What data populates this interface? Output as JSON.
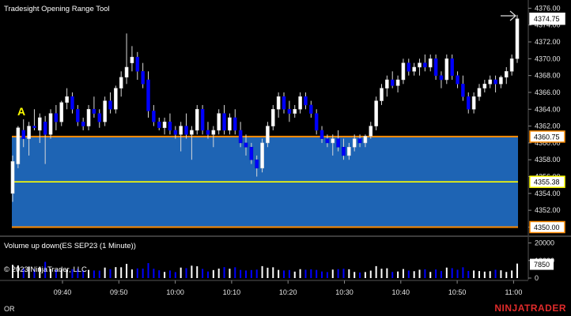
{
  "window": {
    "title": "Tradesight Opening Range Tool",
    "corner_label": "OR",
    "brand": "NINJATRADER",
    "brand_color": "#e02b2b"
  },
  "chart_data": [
    {
      "type": "candlestick",
      "title": "Tradesight Opening Range Tool",
      "time_ticks": [
        "09:40",
        "09:50",
        "10:00",
        "10:10",
        "10:20",
        "10:30",
        "10:40",
        "10:50",
        "11:00"
      ],
      "y_ticks": [
        4350.0,
        4352.0,
        4354.0,
        4356.0,
        4358.0,
        4360.0,
        4362.0,
        4364.0,
        4366.0,
        4368.0,
        4370.0,
        4372.0,
        4374.0,
        4376.0
      ],
      "ylim": [
        4349.2,
        4376.6
      ],
      "up_color": "#ffffff",
      "down_color": "#0000ff",
      "opening_range": {
        "high": 4360.75,
        "low": 4350.0,
        "mid": 4355.38,
        "fill_color": "#1e64b4",
        "edge_color": "#ff8c00",
        "mid_color": "#ffff00",
        "label": "A",
        "label_color": "#ffff00"
      },
      "price_labels": [
        {
          "value": "4374.75",
          "price": 4374.75,
          "background": "#ffffff",
          "text_color": "#000000"
        },
        {
          "value": "4360.75",
          "price": 4360.75,
          "background": "#ffffff",
          "text_color": "#000000",
          "border": "#ff8c00"
        },
        {
          "value": "4355.38",
          "price": 4355.38,
          "background": "#ffffff",
          "text_color": "#000000",
          "border": "#ffff00"
        },
        {
          "value": "4350.00",
          "price": 4350.0,
          "background": "#ffffff",
          "text_color": "#000000",
          "border": "#ff8c00"
        }
      ],
      "candles": [
        {
          "o": 4354.0,
          "h": 4358.5,
          "l": 4353.0,
          "c": 4357.8
        },
        {
          "o": 4357.5,
          "h": 4362.0,
          "l": 4357.0,
          "c": 4361.8
        },
        {
          "o": 4361.5,
          "h": 4362.8,
          "l": 4359.5,
          "c": 4360.5
        },
        {
          "o": 4360.5,
          "h": 4362.5,
          "l": 4358.5,
          "c": 4362.0
        },
        {
          "o": 4362.0,
          "h": 4364.0,
          "l": 4361.5,
          "c": 4361.8
        },
        {
          "o": 4361.5,
          "h": 4363.5,
          "l": 4360.0,
          "c": 4363.0
        },
        {
          "o": 4362.5,
          "h": 4363.2,
          "l": 4357.5,
          "c": 4361.0
        },
        {
          "o": 4361.0,
          "h": 4364.0,
          "l": 4360.5,
          "c": 4363.5
        },
        {
          "o": 4363.5,
          "h": 4364.5,
          "l": 4361.5,
          "c": 4362.5
        },
        {
          "o": 4362.5,
          "h": 4365.0,
          "l": 4362.0,
          "c": 4364.8
        },
        {
          "o": 4364.8,
          "h": 4366.5,
          "l": 4364.0,
          "c": 4365.5
        },
        {
          "o": 4365.5,
          "h": 4366.0,
          "l": 4363.5,
          "c": 4364.0
        },
        {
          "o": 4364.0,
          "h": 4364.5,
          "l": 4362.0,
          "c": 4362.5
        },
        {
          "o": 4362.5,
          "h": 4363.0,
          "l": 4361.5,
          "c": 4362.0
        },
        {
          "o": 4362.0,
          "h": 4364.5,
          "l": 4361.5,
          "c": 4364.0
        },
        {
          "o": 4364.0,
          "h": 4365.5,
          "l": 4363.0,
          "c": 4363.5
        },
        {
          "o": 4363.5,
          "h": 4364.0,
          "l": 4361.8,
          "c": 4362.5
        },
        {
          "o": 4362.5,
          "h": 4365.5,
          "l": 4362.0,
          "c": 4365.0
        },
        {
          "o": 4365.0,
          "h": 4366.0,
          "l": 4363.5,
          "c": 4364.0
        },
        {
          "o": 4364.0,
          "h": 4366.8,
          "l": 4363.5,
          "c": 4366.5
        },
        {
          "o": 4366.5,
          "h": 4368.5,
          "l": 4365.5,
          "c": 4367.8
        },
        {
          "o": 4367.8,
          "h": 4373.0,
          "l": 4367.0,
          "c": 4369.0
        },
        {
          "o": 4369.5,
          "h": 4371.5,
          "l": 4368.5,
          "c": 4370.2
        },
        {
          "o": 4370.2,
          "h": 4370.8,
          "l": 4367.5,
          "c": 4368.5
        },
        {
          "o": 4368.5,
          "h": 4369.5,
          "l": 4366.5,
          "c": 4367.0
        },
        {
          "o": 4367.5,
          "h": 4368.5,
          "l": 4363.0,
          "c": 4363.8
        },
        {
          "o": 4363.8,
          "h": 4364.5,
          "l": 4362.0,
          "c": 4362.5
        },
        {
          "o": 4362.5,
          "h": 4363.0,
          "l": 4361.5,
          "c": 4361.8
        },
        {
          "o": 4361.8,
          "h": 4363.0,
          "l": 4361.0,
          "c": 4362.5
        },
        {
          "o": 4362.5,
          "h": 4363.5,
          "l": 4361.0,
          "c": 4361.5
        },
        {
          "o": 4361.5,
          "h": 4362.0,
          "l": 4360.5,
          "c": 4361.0
        },
        {
          "o": 4361.0,
          "h": 4362.5,
          "l": 4359.0,
          "c": 4362.0
        },
        {
          "o": 4362.0,
          "h": 4363.5,
          "l": 4360.5,
          "c": 4361.0
        },
        {
          "o": 4361.0,
          "h": 4362.0,
          "l": 4358.0,
          "c": 4361.5
        },
        {
          "o": 4361.5,
          "h": 4364.5,
          "l": 4361.0,
          "c": 4364.0
        },
        {
          "o": 4364.0,
          "h": 4364.5,
          "l": 4361.0,
          "c": 4361.5
        },
        {
          "o": 4361.5,
          "h": 4362.5,
          "l": 4360.5,
          "c": 4361.0
        },
        {
          "o": 4361.0,
          "h": 4362.0,
          "l": 4359.5,
          "c": 4361.5
        },
        {
          "o": 4361.5,
          "h": 4364.0,
          "l": 4361.0,
          "c": 4363.5
        },
        {
          "o": 4363.5,
          "h": 4364.5,
          "l": 4361.0,
          "c": 4361.5
        },
        {
          "o": 4361.5,
          "h": 4363.5,
          "l": 4361.0,
          "c": 4363.0
        },
        {
          "o": 4363.0,
          "h": 4364.0,
          "l": 4361.0,
          "c": 4361.5
        },
        {
          "o": 4361.5,
          "h": 4362.5,
          "l": 4359.5,
          "c": 4360.0
        },
        {
          "o": 4360.0,
          "h": 4361.0,
          "l": 4358.5,
          "c": 4359.5
        },
        {
          "o": 4359.5,
          "h": 4360.0,
          "l": 4357.5,
          "c": 4358.0
        },
        {
          "o": 4358.0,
          "h": 4358.5,
          "l": 4356.0,
          "c": 4357.0
        },
        {
          "o": 4357.0,
          "h": 4360.5,
          "l": 4356.5,
          "c": 4360.0
        },
        {
          "o": 4360.0,
          "h": 4362.5,
          "l": 4359.5,
          "c": 4362.0
        },
        {
          "o": 4362.0,
          "h": 4364.5,
          "l": 4361.5,
          "c": 4364.0
        },
        {
          "o": 4364.0,
          "h": 4366.0,
          "l": 4363.0,
          "c": 4365.5
        },
        {
          "o": 4365.5,
          "h": 4366.0,
          "l": 4363.5,
          "c": 4364.0
        },
        {
          "o": 4364.0,
          "h": 4365.0,
          "l": 4362.5,
          "c": 4363.5
        },
        {
          "o": 4363.5,
          "h": 4364.5,
          "l": 4363.0,
          "c": 4364.0
        },
        {
          "o": 4364.0,
          "h": 4366.0,
          "l": 4363.5,
          "c": 4365.5
        },
        {
          "o": 4365.5,
          "h": 4366.0,
          "l": 4364.0,
          "c": 4364.5
        },
        {
          "o": 4364.5,
          "h": 4365.0,
          "l": 4363.0,
          "c": 4363.5
        },
        {
          "o": 4363.5,
          "h": 4364.0,
          "l": 4361.0,
          "c": 4361.5
        },
        {
          "o": 4361.5,
          "h": 4362.0,
          "l": 4360.0,
          "c": 4360.5
        },
        {
          "o": 4360.5,
          "h": 4361.0,
          "l": 4359.5,
          "c": 4360.0
        },
        {
          "o": 4360.0,
          "h": 4361.0,
          "l": 4358.5,
          "c": 4360.5
        },
        {
          "o": 4360.5,
          "h": 4361.5,
          "l": 4359.0,
          "c": 4359.5
        },
        {
          "o": 4359.5,
          "h": 4360.5,
          "l": 4358.0,
          "c": 4358.5
        },
        {
          "o": 4358.5,
          "h": 4360.0,
          "l": 4358.0,
          "c": 4359.5
        },
        {
          "o": 4359.5,
          "h": 4361.0,
          "l": 4359.0,
          "c": 4360.5
        },
        {
          "o": 4360.5,
          "h": 4361.0,
          "l": 4359.5,
          "c": 4360.0
        },
        {
          "o": 4360.0,
          "h": 4361.0,
          "l": 4359.5,
          "c": 4360.8
        },
        {
          "o": 4360.8,
          "h": 4362.5,
          "l": 4360.5,
          "c": 4362.0
        },
        {
          "o": 4362.0,
          "h": 4365.5,
          "l": 4361.5,
          "c": 4365.0
        },
        {
          "o": 4365.0,
          "h": 4367.0,
          "l": 4364.5,
          "c": 4366.5
        },
        {
          "o": 4366.5,
          "h": 4368.0,
          "l": 4365.5,
          "c": 4367.5
        },
        {
          "o": 4367.5,
          "h": 4368.5,
          "l": 4366.5,
          "c": 4366.8
        },
        {
          "o": 4366.8,
          "h": 4368.0,
          "l": 4366.0,
          "c": 4367.5
        },
        {
          "o": 4367.5,
          "h": 4370.0,
          "l": 4367.0,
          "c": 4369.5
        },
        {
          "o": 4369.5,
          "h": 4370.0,
          "l": 4368.0,
          "c": 4368.5
        },
        {
          "o": 4368.5,
          "h": 4369.5,
          "l": 4368.0,
          "c": 4369.0
        },
        {
          "o": 4369.0,
          "h": 4370.0,
          "l": 4368.0,
          "c": 4369.5
        },
        {
          "o": 4369.5,
          "h": 4370.5,
          "l": 4368.5,
          "c": 4369.0
        },
        {
          "o": 4369.0,
          "h": 4370.5,
          "l": 4368.5,
          "c": 4370.0
        },
        {
          "o": 4370.0,
          "h": 4370.5,
          "l": 4367.5,
          "c": 4368.0
        },
        {
          "o": 4368.0,
          "h": 4368.5,
          "l": 4366.5,
          "c": 4367.5
        },
        {
          "o": 4367.5,
          "h": 4370.5,
          "l": 4367.0,
          "c": 4370.0
        },
        {
          "o": 4370.0,
          "h": 4370.5,
          "l": 4367.5,
          "c": 4368.0
        },
        {
          "o": 4368.0,
          "h": 4368.5,
          "l": 4366.5,
          "c": 4367.0
        },
        {
          "o": 4367.0,
          "h": 4368.0,
          "l": 4365.0,
          "c": 4365.5
        },
        {
          "o": 4365.5,
          "h": 4366.0,
          "l": 4363.5,
          "c": 4364.0
        },
        {
          "o": 4364.0,
          "h": 4366.0,
          "l": 4363.5,
          "c": 4365.5
        },
        {
          "o": 4365.5,
          "h": 4367.0,
          "l": 4365.0,
          "c": 4366.5
        },
        {
          "o": 4366.5,
          "h": 4367.5,
          "l": 4366.0,
          "c": 4367.0
        },
        {
          "o": 4367.0,
          "h": 4368.0,
          "l": 4366.5,
          "c": 4367.5
        },
        {
          "o": 4367.5,
          "h": 4368.0,
          "l": 4366.0,
          "c": 4367.0
        },
        {
          "o": 4367.0,
          "h": 4368.0,
          "l": 4366.5,
          "c": 4367.8
        },
        {
          "o": 4367.8,
          "h": 4369.0,
          "l": 4367.0,
          "c": 4368.5
        },
        {
          "o": 4368.5,
          "h": 4370.5,
          "l": 4368.0,
          "c": 4370.0
        },
        {
          "o": 4370.0,
          "h": 4375.2,
          "l": 4369.5,
          "c": 4374.75
        }
      ]
    },
    {
      "type": "bar",
      "title": "Volume up down(ES SEP23 (1 Minute))",
      "y_ticks": [
        0,
        10000,
        20000
      ],
      "ylim": [
        0,
        22500
      ],
      "last_value": "7850",
      "last_value_num": 7850,
      "copyright": "© 2023 NinjaTrader, LLC"
    }
  ]
}
